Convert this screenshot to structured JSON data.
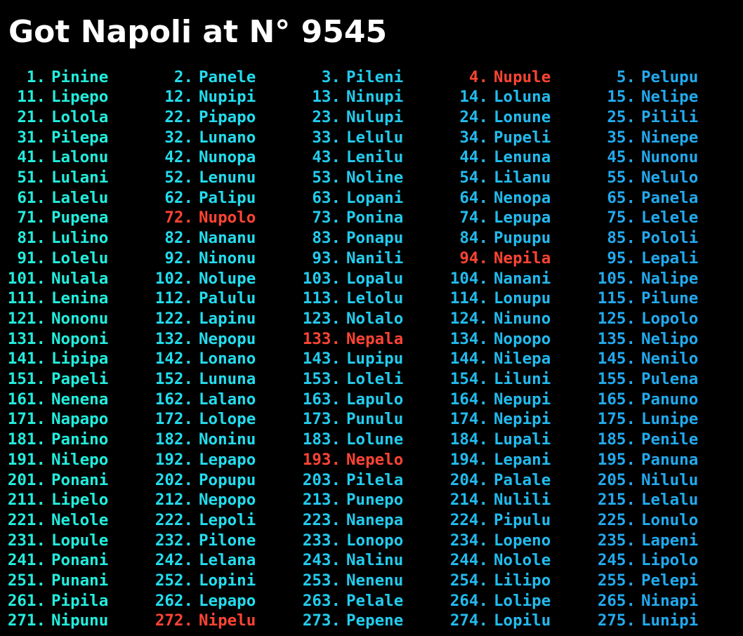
{
  "title": "Got Napoli at N° 9545",
  "colors": {
    "background": "#000000",
    "title": "#ffffff",
    "highlight": "#ff4433",
    "column_colors": [
      "#22eedd",
      "#22ddee",
      "#22ccee",
      "#22bbee",
      "#22aaee"
    ]
  },
  "list": {
    "columns": [
      [
        {
          "num": "1.",
          "name": "Pinine"
        },
        {
          "num": "11.",
          "name": "Lipepo"
        },
        {
          "num": "21.",
          "name": "Lolola"
        },
        {
          "num": "31.",
          "name": "Pilepa"
        },
        {
          "num": "41.",
          "name": "Lalonu"
        },
        {
          "num": "51.",
          "name": "Lulani"
        },
        {
          "num": "61.",
          "name": "Lalelu"
        },
        {
          "num": "71.",
          "name": "Pupena"
        },
        {
          "num": "81.",
          "name": "Lulino"
        },
        {
          "num": "91.",
          "name": "Lolelu"
        },
        {
          "num": "101.",
          "name": "Nulala"
        },
        {
          "num": "111.",
          "name": "Lenina"
        },
        {
          "num": "121.",
          "name": "Nononu"
        },
        {
          "num": "131.",
          "name": "Noponi"
        },
        {
          "num": "141.",
          "name": "Lipipa"
        },
        {
          "num": "151.",
          "name": "Papeli"
        },
        {
          "num": "161.",
          "name": "Nenena"
        },
        {
          "num": "171.",
          "name": "Napapo"
        },
        {
          "num": "181.",
          "name": "Panino"
        },
        {
          "num": "191.",
          "name": "Nilepo"
        },
        {
          "num": "201.",
          "name": "Ponani"
        },
        {
          "num": "211.",
          "name": "Lipelo"
        },
        {
          "num": "221.",
          "name": "Nelole"
        },
        {
          "num": "231.",
          "name": "Lopule"
        },
        {
          "num": "241.",
          "name": "Ponani"
        },
        {
          "num": "251.",
          "name": "Punani"
        },
        {
          "num": "261.",
          "name": "Pipila"
        },
        {
          "num": "271.",
          "name": "Nipunu"
        }
      ],
      [
        {
          "num": "2.",
          "name": "Panele"
        },
        {
          "num": "12.",
          "name": "Nupipi"
        },
        {
          "num": "22.",
          "name": "Pipapo"
        },
        {
          "num": "32.",
          "name": "Lunano"
        },
        {
          "num": "42.",
          "name": "Nunopa"
        },
        {
          "num": "52.",
          "name": "Lenunu"
        },
        {
          "num": "62.",
          "name": "Palipu"
        },
        {
          "num": "72.",
          "name": "Nupolo",
          "highlight": true
        },
        {
          "num": "82.",
          "name": "Nananu"
        },
        {
          "num": "92.",
          "name": "Ninonu"
        },
        {
          "num": "102.",
          "name": "Nolupe"
        },
        {
          "num": "112.",
          "name": "Palulu"
        },
        {
          "num": "122.",
          "name": "Lapinu"
        },
        {
          "num": "132.",
          "name": "Nepopu"
        },
        {
          "num": "142.",
          "name": "Lonano"
        },
        {
          "num": "152.",
          "name": "Lununa"
        },
        {
          "num": "162.",
          "name": "Lalano"
        },
        {
          "num": "172.",
          "name": "Lolope"
        },
        {
          "num": "182.",
          "name": "Noninu"
        },
        {
          "num": "192.",
          "name": "Lepapo"
        },
        {
          "num": "202.",
          "name": "Popupu"
        },
        {
          "num": "212.",
          "name": "Nepopo"
        },
        {
          "num": "222.",
          "name": "Lepoli"
        },
        {
          "num": "232.",
          "name": "Pilone"
        },
        {
          "num": "242.",
          "name": "Lelana"
        },
        {
          "num": "252.",
          "name": "Lopini"
        },
        {
          "num": "262.",
          "name": "Lepapo"
        },
        {
          "num": "272.",
          "name": "Nipelu",
          "highlight": true
        }
      ],
      [
        {
          "num": "3.",
          "name": "Pileni"
        },
        {
          "num": "13.",
          "name": "Ninupi"
        },
        {
          "num": "23.",
          "name": "Nulupi"
        },
        {
          "num": "33.",
          "name": "Lelulu"
        },
        {
          "num": "43.",
          "name": "Lenilu"
        },
        {
          "num": "53.",
          "name": "Noline"
        },
        {
          "num": "63.",
          "name": "Lopani"
        },
        {
          "num": "73.",
          "name": "Ponina"
        },
        {
          "num": "83.",
          "name": "Ponapu"
        },
        {
          "num": "93.",
          "name": "Nanili"
        },
        {
          "num": "103.",
          "name": "Lopalu"
        },
        {
          "num": "113.",
          "name": "Lelolu"
        },
        {
          "num": "123.",
          "name": "Nolalo"
        },
        {
          "num": "133.",
          "name": "Nepala",
          "highlight": true
        },
        {
          "num": "143.",
          "name": "Lupipu"
        },
        {
          "num": "153.",
          "name": "Loleli"
        },
        {
          "num": "163.",
          "name": "Lapulo"
        },
        {
          "num": "173.",
          "name": "Punulu"
        },
        {
          "num": "183.",
          "name": "Lolune"
        },
        {
          "num": "193.",
          "name": "Nepelo",
          "highlight": true
        },
        {
          "num": "203.",
          "name": "Pilela"
        },
        {
          "num": "213.",
          "name": "Punepo"
        },
        {
          "num": "223.",
          "name": "Nanepa"
        },
        {
          "num": "233.",
          "name": "Lonopo"
        },
        {
          "num": "243.",
          "name": "Nalinu"
        },
        {
          "num": "253.",
          "name": "Nenenu"
        },
        {
          "num": "263.",
          "name": "Pelale"
        },
        {
          "num": "273.",
          "name": "Pepene"
        }
      ],
      [
        {
          "num": "4.",
          "name": "Nupule",
          "highlight": true
        },
        {
          "num": "14.",
          "name": "Loluna"
        },
        {
          "num": "24.",
          "name": "Lonune"
        },
        {
          "num": "34.",
          "name": "Pupeli"
        },
        {
          "num": "44.",
          "name": "Lenuna"
        },
        {
          "num": "54.",
          "name": "Lilanu"
        },
        {
          "num": "64.",
          "name": "Nenopa"
        },
        {
          "num": "74.",
          "name": "Lepupa"
        },
        {
          "num": "84.",
          "name": "Pupupu"
        },
        {
          "num": "94.",
          "name": "Nepila",
          "highlight": true
        },
        {
          "num": "104.",
          "name": "Nanani"
        },
        {
          "num": "114.",
          "name": "Lonupu"
        },
        {
          "num": "124.",
          "name": "Ninuno"
        },
        {
          "num": "134.",
          "name": "Nopopo"
        },
        {
          "num": "144.",
          "name": "Nilepa"
        },
        {
          "num": "154.",
          "name": "Liluni"
        },
        {
          "num": "164.",
          "name": "Nepupi"
        },
        {
          "num": "174.",
          "name": "Nepipi"
        },
        {
          "num": "184.",
          "name": "Lupali"
        },
        {
          "num": "194.",
          "name": "Lepani"
        },
        {
          "num": "204.",
          "name": "Palale"
        },
        {
          "num": "214.",
          "name": "Nulili"
        },
        {
          "num": "224.",
          "name": "Pipulu"
        },
        {
          "num": "234.",
          "name": "Lopeno"
        },
        {
          "num": "244.",
          "name": "Nolole"
        },
        {
          "num": "254.",
          "name": "Lilipo"
        },
        {
          "num": "264.",
          "name": "Lolipe"
        },
        {
          "num": "274.",
          "name": "Lopilu"
        }
      ],
      [
        {
          "num": "5.",
          "name": "Pelupu"
        },
        {
          "num": "15.",
          "name": "Nelipe"
        },
        {
          "num": "25.",
          "name": "Pilili"
        },
        {
          "num": "35.",
          "name": "Ninepe"
        },
        {
          "num": "45.",
          "name": "Nunonu"
        },
        {
          "num": "55.",
          "name": "Nelulo"
        },
        {
          "num": "65.",
          "name": "Panela"
        },
        {
          "num": "75.",
          "name": "Lelele"
        },
        {
          "num": "85.",
          "name": "Pololi"
        },
        {
          "num": "95.",
          "name": "Lepali"
        },
        {
          "num": "105.",
          "name": "Nalipe"
        },
        {
          "num": "115.",
          "name": "Pilune"
        },
        {
          "num": "125.",
          "name": "Lopolo"
        },
        {
          "num": "135.",
          "name": "Nelipo"
        },
        {
          "num": "145.",
          "name": "Nenilo"
        },
        {
          "num": "155.",
          "name": "Pulena"
        },
        {
          "num": "165.",
          "name": "Panuno"
        },
        {
          "num": "175.",
          "name": "Lunipe"
        },
        {
          "num": "185.",
          "name": "Penile"
        },
        {
          "num": "195.",
          "name": "Panuna"
        },
        {
          "num": "205.",
          "name": "Nilulu"
        },
        {
          "num": "215.",
          "name": "Lelalu"
        },
        {
          "num": "225.",
          "name": "Lonulo"
        },
        {
          "num": "235.",
          "name": "Lapeni"
        },
        {
          "num": "245.",
          "name": "Lipolo"
        },
        {
          "num": "255.",
          "name": "Pelepi"
        },
        {
          "num": "265.",
          "name": "Ninapi"
        },
        {
          "num": "275.",
          "name": "Lunipi"
        }
      ]
    ]
  }
}
